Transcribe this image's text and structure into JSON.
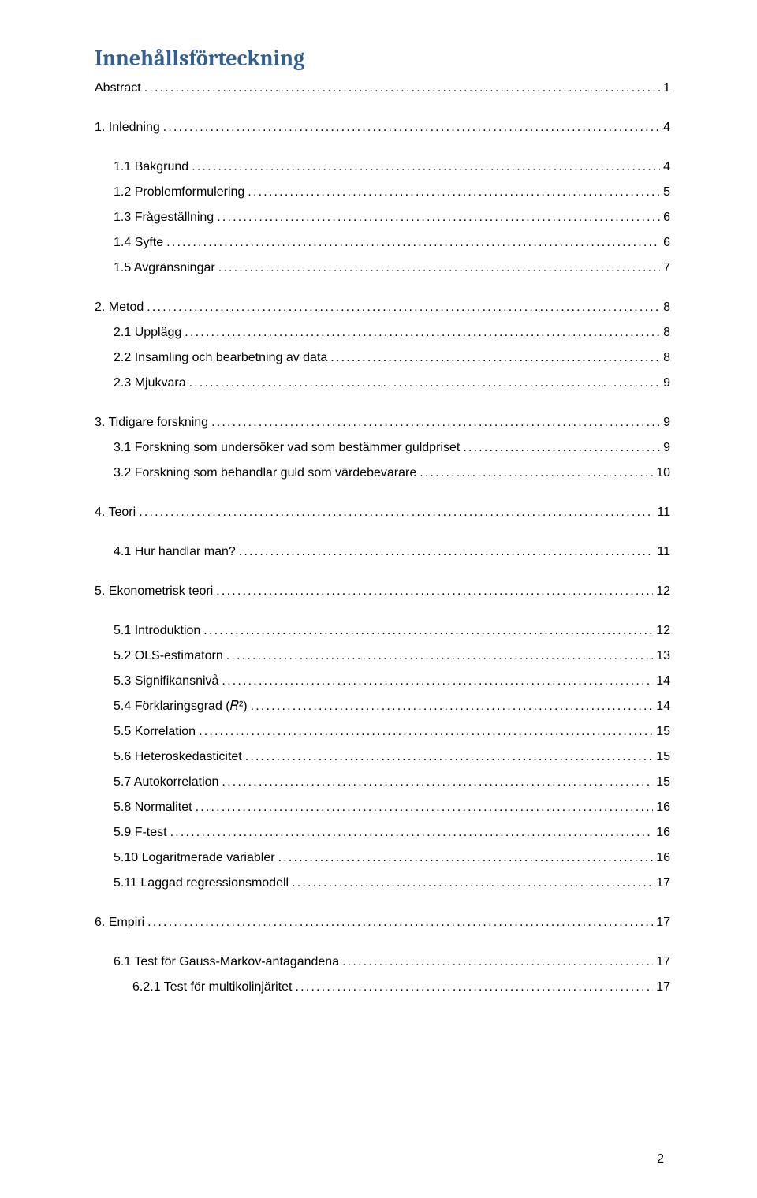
{
  "title": "Innehållsförteckning",
  "page_number": "2",
  "entries": [
    {
      "label": "Abstract",
      "page": "1",
      "indent": 0,
      "gap": 0
    },
    {
      "label": "1. Inledning",
      "page": "4",
      "indent": 0,
      "gap": 1
    },
    {
      "label": "1.1 Bakgrund",
      "page": "4",
      "indent": 1,
      "gap": 1
    },
    {
      "label": "1.2 Problemformulering",
      "page": "5",
      "indent": 1,
      "gap": 0
    },
    {
      "label": "1.3 Frågeställning",
      "page": "6",
      "indent": 1,
      "gap": 0
    },
    {
      "label": "1.4 Syfte",
      "page": "6",
      "indent": 1,
      "gap": 0
    },
    {
      "label": "1.5 Avgränsningar",
      "page": "7",
      "indent": 1,
      "gap": 0
    },
    {
      "label": "2. Metod",
      "page": "8",
      "indent": 0,
      "gap": 1
    },
    {
      "label": "2.1 Upplägg",
      "page": "8",
      "indent": 1,
      "gap": 0
    },
    {
      "label": "2.2 Insamling och bearbetning av data",
      "page": "8",
      "indent": 1,
      "gap": 0
    },
    {
      "label": "2.3 Mjukvara",
      "page": "9",
      "indent": 1,
      "gap": 0
    },
    {
      "label": "3. Tidigare forskning",
      "page": "9",
      "indent": 0,
      "gap": 1
    },
    {
      "label": "3.1 Forskning som undersöker vad som bestämmer guldpriset",
      "page": "9",
      "indent": 1,
      "gap": 0
    },
    {
      "label": "3.2 Forskning som behandlar guld som värdebevarare",
      "page": "10",
      "indent": 1,
      "gap": 0
    },
    {
      "label": "4. Teori",
      "page": "11",
      "indent": 0,
      "gap": 1
    },
    {
      "label": "4.1 Hur handlar man?",
      "page": "11",
      "indent": 1,
      "gap": 1
    },
    {
      "label": "5. Ekonometrisk teori",
      "page": "12",
      "indent": 0,
      "gap": 1
    },
    {
      "label": "5.1 Introduktion",
      "page": "12",
      "indent": 1,
      "gap": 1
    },
    {
      "label": "5.2 OLS-estimatorn",
      "page": "13",
      "indent": 1,
      "gap": 0
    },
    {
      "label": "5.3 Signifikansnivå",
      "page": "14",
      "indent": 1,
      "gap": 0
    },
    {
      "label": "5.4 Förklaringsgrad (𝑅²)",
      "page": "14",
      "indent": 1,
      "gap": 0
    },
    {
      "label": "5.5 Korrelation",
      "page": "15",
      "indent": 1,
      "gap": 0
    },
    {
      "label": "5.6 Heteroskedasticitet",
      "page": "15",
      "indent": 1,
      "gap": 0
    },
    {
      "label": "5.7 Autokorrelation",
      "page": "15",
      "indent": 1,
      "gap": 0
    },
    {
      "label": "5.8 Normalitet",
      "page": "16",
      "indent": 1,
      "gap": 0
    },
    {
      "label": "5.9 F-test",
      "page": "16",
      "indent": 1,
      "gap": 0
    },
    {
      "label": "5.10 Logaritmerade variabler",
      "page": "16",
      "indent": 1,
      "gap": 0
    },
    {
      "label": "5.11 Laggad regressionsmodell",
      "page": "17",
      "indent": 1,
      "gap": 0
    },
    {
      "label": "6. Empiri",
      "page": "17",
      "indent": 0,
      "gap": 1
    },
    {
      "label": "6.1 Test för Gauss-Markov-antagandena",
      "page": "17",
      "indent": 1,
      "gap": 1
    },
    {
      "label": "6.2.1 Test för multikolinjäritet",
      "page": "17",
      "indent": 2,
      "gap": 0
    }
  ]
}
